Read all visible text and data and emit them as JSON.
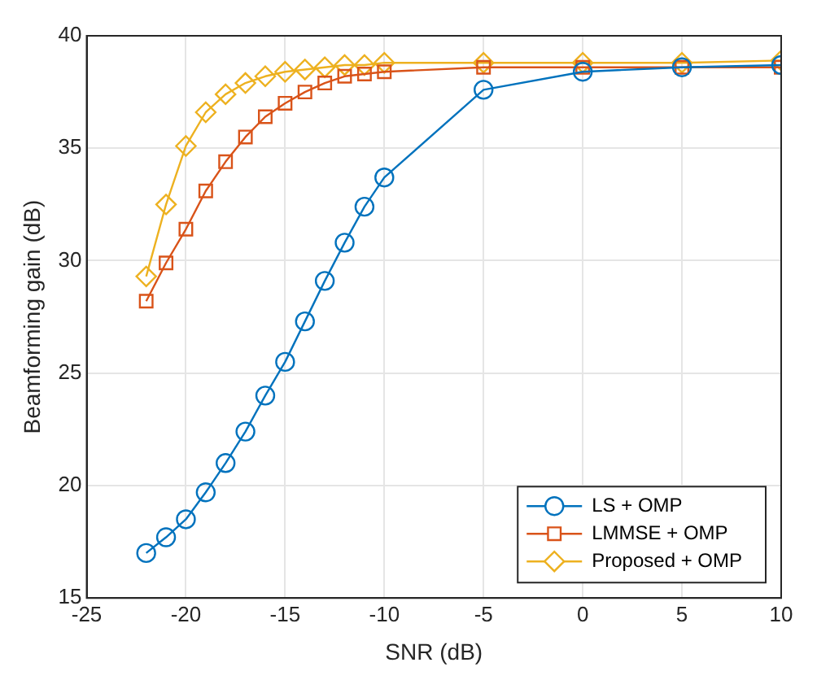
{
  "chart_data": {
    "type": "line",
    "xlabel": "SNR (dB)",
    "ylabel": "Beamforming gain (dB)",
    "x": [
      -22,
      -21,
      -20,
      -19,
      -18,
      -17,
      -16,
      -15,
      -14,
      -13,
      -12,
      -11,
      -10,
      -5,
      0,
      5,
      10
    ],
    "series": [
      {
        "name": "LS + OMP",
        "color": "#0072bd",
        "marker": "circle",
        "values": [
          17.0,
          17.7,
          18.5,
          19.7,
          21.0,
          22.4,
          24.0,
          25.5,
          27.3,
          29.1,
          30.8,
          32.4,
          33.7,
          37.6,
          38.4,
          38.6,
          38.7
        ]
      },
      {
        "name": "LMMSE + OMP",
        "color": "#d95319",
        "marker": "square",
        "values": [
          28.2,
          29.9,
          31.4,
          33.1,
          34.4,
          35.5,
          36.4,
          37.0,
          37.5,
          37.9,
          38.2,
          38.3,
          38.4,
          38.6,
          38.6,
          38.6,
          38.6
        ]
      },
      {
        "name": "Proposed + OMP",
        "color": "#edb120",
        "marker": "diamond",
        "values": [
          29.3,
          32.5,
          35.1,
          36.6,
          37.4,
          37.9,
          38.2,
          38.4,
          38.5,
          38.6,
          38.7,
          38.7,
          38.8,
          38.8,
          38.8,
          38.8,
          38.9
        ]
      }
    ],
    "xlim": [
      -25,
      10
    ],
    "xticks": [
      -25,
      -20,
      -15,
      -10,
      -5,
      0,
      5,
      10
    ],
    "ylim": [
      15,
      40
    ],
    "yticks": [
      15,
      20,
      25,
      30,
      35,
      40
    ],
    "grid": true,
    "legend": "bottom right",
    "line_style": "solid"
  }
}
